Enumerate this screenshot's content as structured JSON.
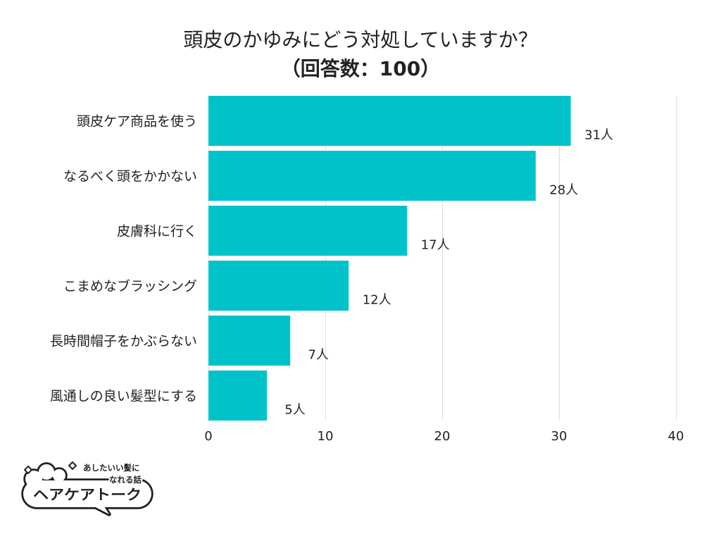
{
  "chart_data": {
    "type": "bar",
    "orientation": "horizontal",
    "title": "頭皮のかゆみにどう対処していますか？",
    "subtitle": "（回答数：100）",
    "categories": [
      "頭皮ケア商品を使う",
      "なるべく頭をかかない",
      "皮膚科に行く",
      "こまめなブラッシング",
      "長時間帽子をかぶらない",
      "風通しの良い髪型にする"
    ],
    "values": [
      31,
      28,
      17,
      12,
      7,
      5
    ],
    "data_labels": [
      "31人",
      "28人",
      "17人",
      "12人",
      "7人",
      "5人"
    ],
    "xlim": [
      0,
      40
    ],
    "x_ticks": [
      0,
      10,
      20,
      30,
      40
    ],
    "grid": true,
    "bar_color": "#00C3C9"
  },
  "logo": {
    "tagline_line1": "あしたいい髪に",
    "tagline_line2": "なれる話",
    "name": "ヘアケアトーク"
  }
}
